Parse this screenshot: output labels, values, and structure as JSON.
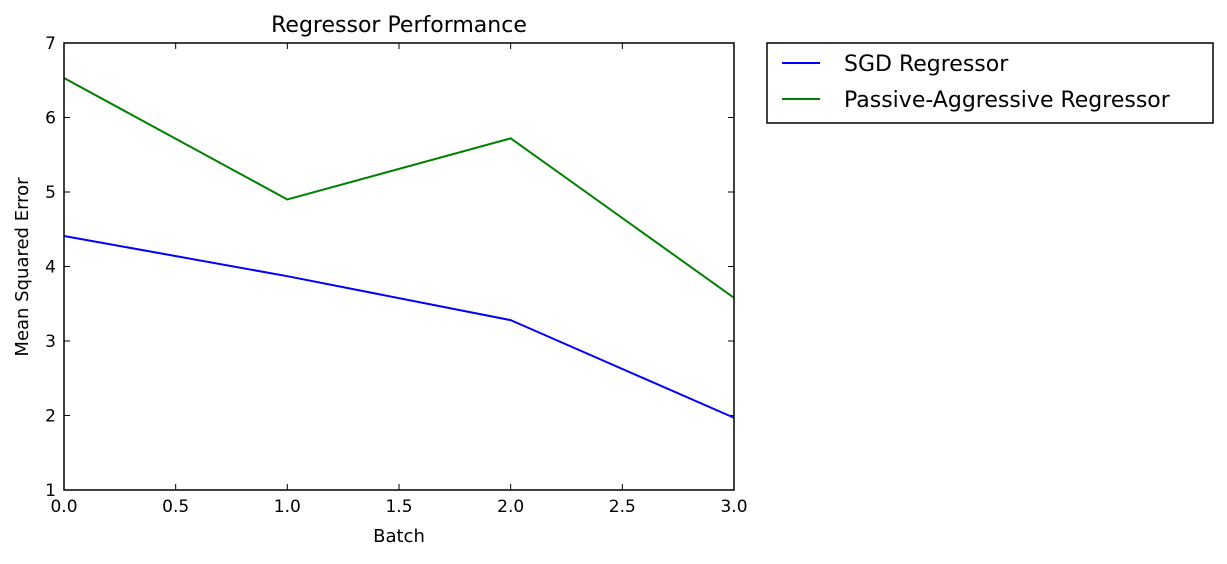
{
  "chart_data": {
    "type": "line",
    "title": "Regressor Performance",
    "xlabel": "Batch",
    "ylabel": "Mean Squared Error",
    "xlim": [
      0.0,
      3.0
    ],
    "ylim": [
      1,
      7
    ],
    "xticks": [
      0.0,
      0.5,
      1.0,
      1.5,
      2.0,
      2.5,
      3.0
    ],
    "xtick_labels": [
      "0.0",
      "0.5",
      "1.0",
      "1.5",
      "2.0",
      "2.5",
      "3.0"
    ],
    "yticks": [
      1,
      2,
      3,
      4,
      5,
      6,
      7
    ],
    "ytick_labels": [
      "1",
      "2",
      "3",
      "4",
      "5",
      "6",
      "7"
    ],
    "grid": false,
    "legend_position": "outside-right-top",
    "x": [
      0,
      1,
      2,
      3
    ],
    "series": [
      {
        "name": "SGD Regressor",
        "color": "#0000ff",
        "values": [
          4.41,
          3.87,
          3.28,
          1.97
        ]
      },
      {
        "name": "Passive-Aggressive Regressor",
        "color": "#008000",
        "values": [
          6.53,
          4.9,
          5.72,
          3.58
        ]
      }
    ]
  }
}
